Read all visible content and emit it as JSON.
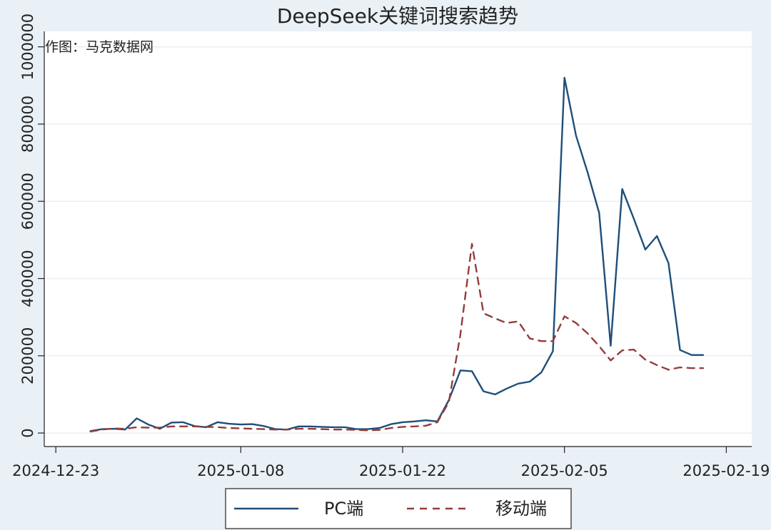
{
  "chart_data": {
    "type": "line",
    "title": "DeepSeek关键词搜索趋势",
    "note": "作图：马克数据网",
    "xlabel": "",
    "ylabel": "",
    "x_ticks": [
      "2024-12-23",
      "2025-01-08",
      "2025-01-22",
      "2025-02-05",
      "2025-02-19"
    ],
    "y_ticks": [
      0,
      200000,
      400000,
      600000,
      800000,
      1000000
    ],
    "ylim": [
      0,
      1000000
    ],
    "legend": {
      "position": "bottom"
    },
    "grid": true,
    "colors": {
      "background": "#e9f0f6",
      "plot": "#ffffff",
      "grid": "#e9f0f6",
      "pc": "#1f4e79",
      "mobile": "#943c3c"
    },
    "dates": [
      "2024-12-26",
      "2024-12-27",
      "2024-12-28",
      "2024-12-29",
      "2024-12-30",
      "2024-12-31",
      "2025-01-01",
      "2025-01-02",
      "2025-01-03",
      "2025-01-04",
      "2025-01-05",
      "2025-01-06",
      "2025-01-07",
      "2025-01-08",
      "2025-01-09",
      "2025-01-10",
      "2025-01-11",
      "2025-01-12",
      "2025-01-13",
      "2025-01-14",
      "2025-01-15",
      "2025-01-16",
      "2025-01-17",
      "2025-01-18",
      "2025-01-19",
      "2025-01-20",
      "2025-01-21",
      "2025-01-22",
      "2025-01-23",
      "2025-01-24",
      "2025-01-25",
      "2025-01-26",
      "2025-01-27",
      "2025-01-28",
      "2025-01-29",
      "2025-01-30",
      "2025-01-31",
      "2025-02-01",
      "2025-02-02",
      "2025-02-03",
      "2025-02-04",
      "2025-02-05",
      "2025-02-06",
      "2025-02-07",
      "2025-02-08",
      "2025-02-09",
      "2025-02-10",
      "2025-02-11",
      "2025-02-12",
      "2025-02-13",
      "2025-02-14",
      "2025-02-15",
      "2025-02-16",
      "2025-02-17"
    ],
    "series": [
      {
        "name": "PC端",
        "style": "solid",
        "values": [
          5000,
          10000,
          11000,
          9000,
          38000,
          22000,
          11000,
          27000,
          28000,
          18000,
          15000,
          28000,
          24000,
          22000,
          23000,
          18000,
          10000,
          9000,
          17000,
          17000,
          16000,
          15000,
          15000,
          10000,
          10000,
          13000,
          23000,
          28000,
          30000,
          33000,
          30000,
          85000,
          162000,
          160000,
          108000,
          100000,
          115000,
          128000,
          133000,
          157000,
          212000,
          920000,
          770000,
          675000,
          570000,
          226000,
          632000,
          555000,
          475000,
          510000,
          440000,
          215000,
          202000,
          202000
        ]
      },
      {
        "name": "移动端",
        "style": "dashed",
        "values": [
          4000,
          9000,
          12000,
          11000,
          15000,
          14000,
          14000,
          17000,
          17000,
          17000,
          16000,
          15000,
          13000,
          12000,
          11000,
          10000,
          9000,
          9000,
          11000,
          11000,
          10000,
          9000,
          9000,
          8000,
          7000,
          8000,
          13000,
          16000,
          17000,
          19000,
          28000,
          80000,
          255000,
          490000,
          310000,
          297000,
          285000,
          289000,
          245000,
          238000,
          238000,
          302000,
          285000,
          258000,
          225000,
          188000,
          214000,
          216000,
          190000,
          176000,
          164000,
          170000,
          168000,
          168000
        ]
      }
    ]
  }
}
